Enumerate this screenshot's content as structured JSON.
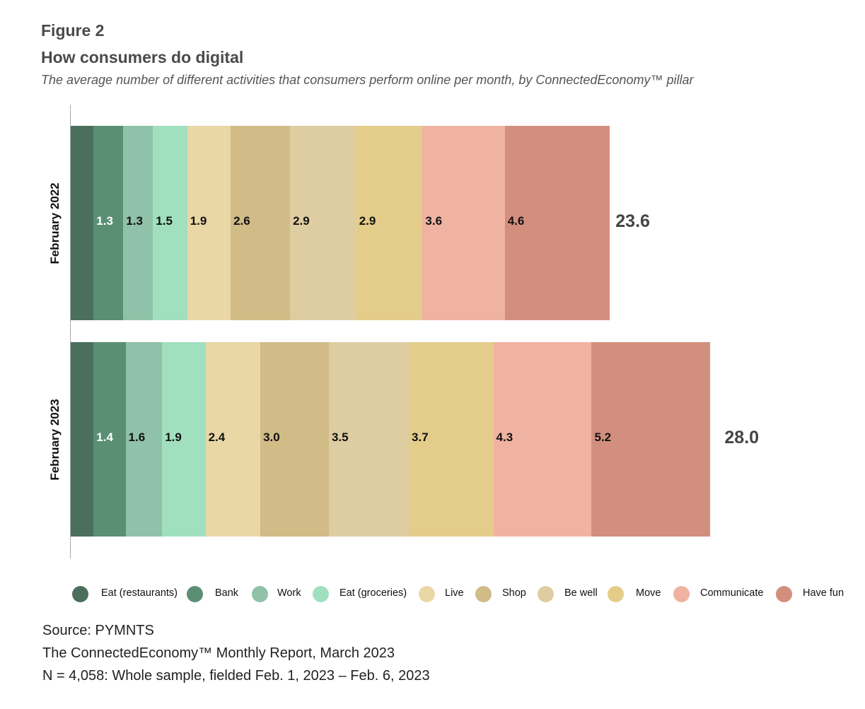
{
  "header": {
    "figure": "Figure 2",
    "title": "How consumers do digital",
    "subtitle": "The average number of different activities that consumers perform online per month, by ConnectedEconomy™ pillar"
  },
  "chart_data": {
    "type": "bar",
    "orientation": "horizontal",
    "stacked": true,
    "categories": [
      "February 2022",
      "February 2023"
    ],
    "series": [
      {
        "name": "Eat (restaurants)",
        "color": "#4a6f5d",
        "values": [
          1.0,
          1.0
        ],
        "labeled": false
      },
      {
        "name": "Bank",
        "color": "#5a8f74",
        "values": [
          1.3,
          1.4
        ],
        "labeled": true
      },
      {
        "name": "Work",
        "color": "#8fc2a8",
        "values": [
          1.3,
          1.6
        ],
        "labeled": true
      },
      {
        "name": "Eat (groceries)",
        "color": "#a0e0bf",
        "values": [
          1.5,
          1.9
        ],
        "labeled": true
      },
      {
        "name": "Live",
        "color": "#ead7a6",
        "values": [
          1.9,
          2.4
        ],
        "labeled": true
      },
      {
        "name": "Shop",
        "color": "#d1bb87",
        "values": [
          2.6,
          3.0
        ],
        "labeled": true
      },
      {
        "name": "Be well",
        "color": "#dfcda2",
        "values": [
          2.9,
          3.5
        ],
        "labeled": true
      },
      {
        "name": "Move",
        "color": "#e4cd8a",
        "values": [
          2.9,
          3.7
        ],
        "labeled": true
      },
      {
        "name": "Communicate",
        "color": "#f0b3a1",
        "values": [
          3.6,
          4.3
        ],
        "labeled": true
      },
      {
        "name": "Have fun",
        "color": "#d38f7e",
        "values": [
          4.6,
          5.2
        ],
        "labeled": true
      }
    ],
    "totals": [
      "23.6",
      "28.0"
    ],
    "legend": "bottom",
    "grid": false
  },
  "source": {
    "line1": "Source: PYMNTS",
    "line2": "The ConnectedEconomy™ Monthly Report, March 2023",
    "line3": "N = 4,058: Whole sample, fielded Feb. 1, 2023 – Feb. 6, 2023"
  }
}
